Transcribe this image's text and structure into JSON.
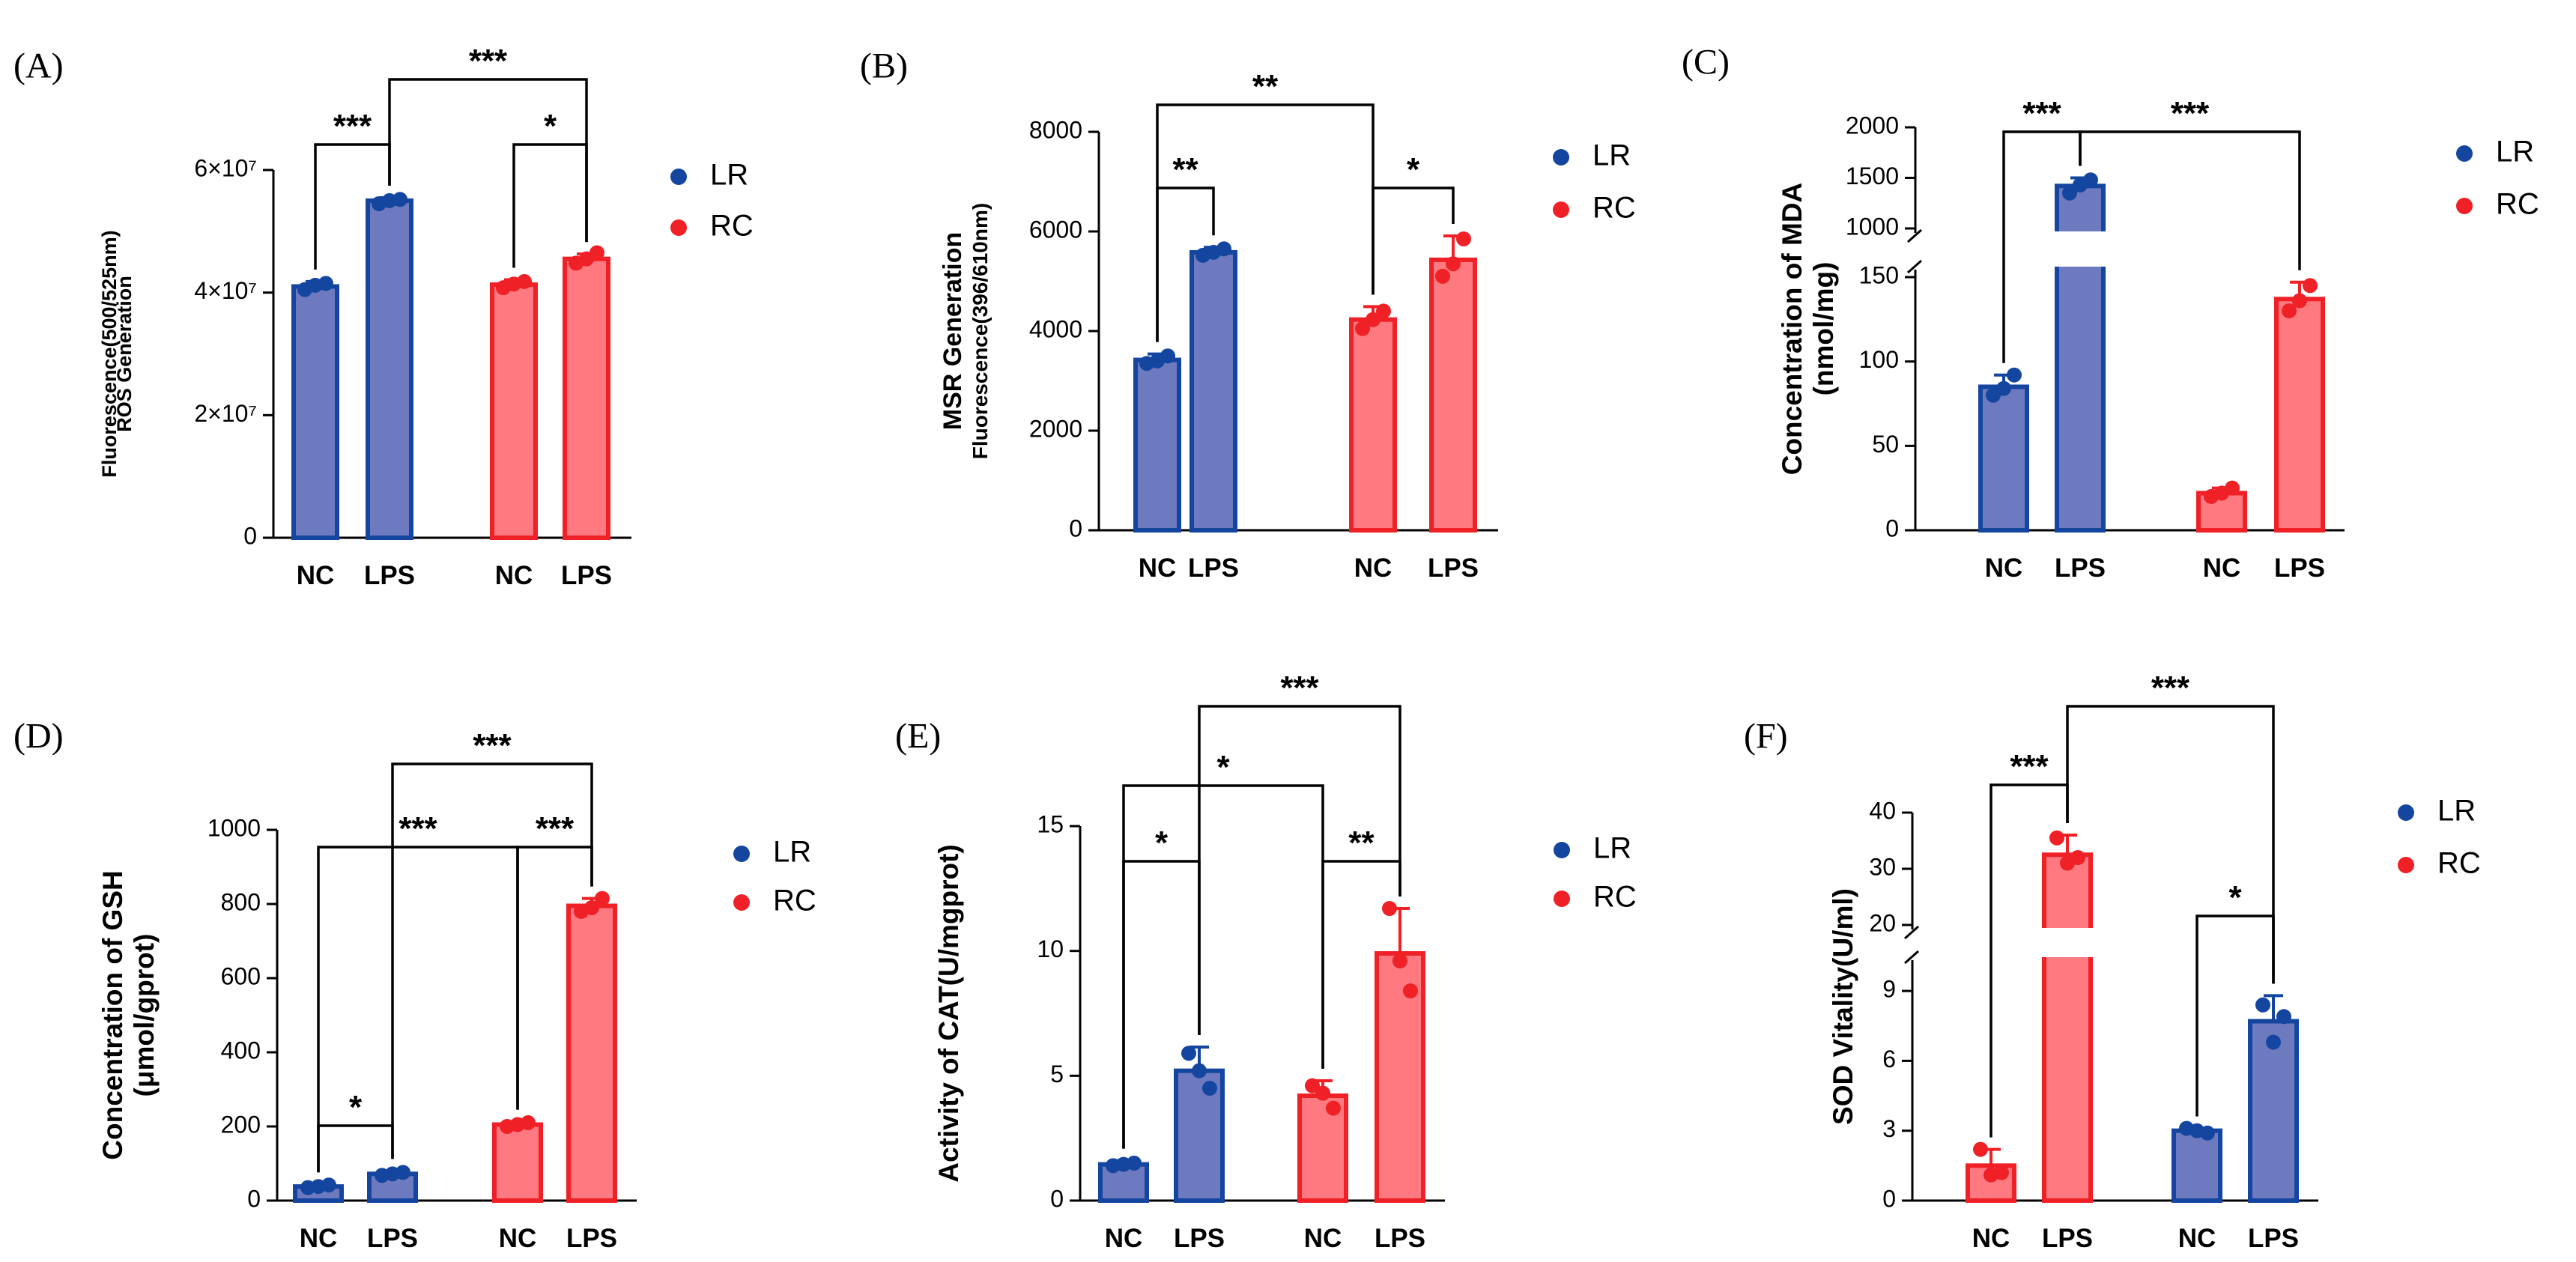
{
  "colors": {
    "LR_fill": "#6e7abf",
    "LR_edge": "#1446a0",
    "LR_dot": "#1446a0",
    "RC_fill": "#ff7a80",
    "RC_edge": "#ef2026",
    "RC_dot": "#ef2026"
  },
  "chart_data": [
    {
      "type": "bar",
      "panel_label": "(A)",
      "categories": [
        "NC",
        "LPS",
        "NC",
        "LPS"
      ],
      "groups": [
        "LR",
        "LR",
        "RC",
        "RC"
      ],
      "values": [
        41000000,
        55000000,
        41300000,
        45500000
      ],
      "errors": [
        800000,
        500000,
        800000,
        800000
      ],
      "points": [
        [
          40500000,
          41500000,
          41200000
        ],
        [
          54500000,
          55200000,
          55000000
        ],
        [
          40800000,
          41800000,
          41400000
        ],
        [
          44800000,
          46500000,
          45500000
        ]
      ],
      "ylabel_lines": [
        "ROS Generation",
        "Fluorescence(500/525nm)"
      ],
      "ylim": [
        0,
        60000000
      ],
      "yticks": [
        0,
        20000000,
        40000000,
        60000000
      ],
      "ytick_labels": [
        "0",
        "2×10⁷",
        "4×10⁷",
        "6×10⁷"
      ],
      "legend": [
        "LR",
        "RC"
      ],
      "significance": [
        {
          "from": 0,
          "to": 1,
          "label": "***"
        },
        {
          "from": 2,
          "to": 3,
          "label": "*"
        },
        {
          "from": 1,
          "to": 3,
          "label": "***"
        }
      ]
    },
    {
      "type": "bar",
      "panel_label": "(B)",
      "categories": [
        "NC",
        "LPS",
        "NC",
        "LPS"
      ],
      "groups": [
        "LR",
        "LR",
        "RC",
        "RC"
      ],
      "values": [
        3420,
        5580,
        4230,
        5430
      ],
      "errors": [
        120,
        100,
        260,
        480
      ],
      "points": [
        [
          3350,
          3500,
          3400
        ],
        [
          5520,
          5650,
          5580
        ],
        [
          4050,
          4400,
          4230
        ],
        [
          5100,
          5850,
          5350
        ]
      ],
      "ylabel_lines": [
        "MSR Generation",
        "Fluorescence(396/610nm)"
      ],
      "ylim": [
        0,
        8000
      ],
      "yticks": [
        0,
        2000,
        4000,
        6000,
        8000
      ],
      "ytick_labels": [
        "0",
        "2000",
        "4000",
        "6000",
        "8000"
      ],
      "legend": [
        "LR",
        "RC"
      ],
      "significance": [
        {
          "from": 0,
          "to": 1,
          "label": "**"
        },
        {
          "from": 2,
          "to": 3,
          "label": "*"
        },
        {
          "from": 0,
          "to": 2,
          "label": "**"
        }
      ]
    },
    {
      "type": "bar",
      "panel_label": "(C)",
      "categories": [
        "NC",
        "LPS",
        "NC",
        "LPS"
      ],
      "groups": [
        "LR",
        "LR",
        "RC",
        "RC"
      ],
      "values": [
        85,
        1420,
        22,
        137
      ],
      "errors": [
        7,
        80,
        3,
        10
      ],
      "points": [
        [
          80,
          92,
          84
        ],
        [
          1350,
          1480,
          1430
        ],
        [
          20,
          25,
          22
        ],
        [
          130,
          145,
          136
        ]
      ],
      "ylabel_lines": [
        "Concentration of MDA",
        "(nmol/mg)"
      ],
      "axis_break": {
        "lower": [
          0,
          150
        ],
        "upper": [
          1000,
          2000
        ]
      },
      "ytick_labels": [
        "0",
        "50",
        "100",
        "150",
        "1000",
        "1500",
        "2000"
      ],
      "legend": [
        "LR",
        "RC"
      ],
      "significance": [
        {
          "from": 0,
          "to": 1,
          "label": "***"
        },
        {
          "from": 1,
          "to": 3,
          "label": "***"
        }
      ]
    },
    {
      "type": "bar",
      "panel_label": "(D)",
      "categories": [
        "NC",
        "LPS",
        "NC",
        "LPS"
      ],
      "groups": [
        "LR",
        "LR",
        "RC",
        "RC"
      ],
      "values": [
        38,
        72,
        205,
        795
      ],
      "errors": [
        6,
        8,
        8,
        20
      ],
      "points": [
        [
          35,
          42,
          38
        ],
        [
          68,
          76,
          72
        ],
        [
          200,
          210,
          205
        ],
        [
          780,
          815,
          790
        ]
      ],
      "ylabel_lines": [
        "Concentration of GSH",
        "(μmol/gprot)"
      ],
      "ylim": [
        0,
        1000
      ],
      "yticks": [
        0,
        200,
        400,
        600,
        800,
        1000
      ],
      "ytick_labels": [
        "0",
        "200",
        "400",
        "600",
        "800",
        "1000"
      ],
      "legend": [
        "LR",
        "RC"
      ],
      "significance": [
        {
          "from": 0,
          "to": 1,
          "label": "*"
        },
        {
          "from": 2,
          "to": 3,
          "label": "***"
        },
        {
          "from": 0,
          "to": 2,
          "label": "***"
        },
        {
          "from": 1,
          "to": 3,
          "label": "***"
        }
      ]
    },
    {
      "type": "bar",
      "panel_label": "(E)",
      "categories": [
        "NC",
        "LPS",
        "NC",
        "LPS"
      ],
      "groups": [
        "LR",
        "LR",
        "RC",
        "RC"
      ],
      "values": [
        1.45,
        5.2,
        4.2,
        9.9
      ],
      "errors": [
        0.15,
        0.95,
        0.6,
        1.8
      ],
      "points": [
        [
          1.4,
          1.5,
          1.45
        ],
        [
          5.9,
          4.5,
          5.2
        ],
        [
          4.6,
          3.7,
          4.3
        ],
        [
          11.7,
          8.4,
          9.6
        ]
      ],
      "ylabel_lines": [
        "Activity of CAT(U/mgprot)"
      ],
      "ylim": [
        0,
        15
      ],
      "yticks": [
        0,
        5,
        10,
        15
      ],
      "ytick_labels": [
        "0",
        "5",
        "10",
        "15"
      ],
      "legend": [
        "LR",
        "RC"
      ],
      "significance": [
        {
          "from": 0,
          "to": 1,
          "label": "*"
        },
        {
          "from": 2,
          "to": 3,
          "label": "**"
        },
        {
          "from": 0,
          "to": 2,
          "label": "*"
        },
        {
          "from": 1,
          "to": 3,
          "label": "***"
        }
      ]
    },
    {
      "type": "bar",
      "panel_label": "(F)",
      "categories": [
        "NC",
        "LPS",
        "NC",
        "LPS"
      ],
      "groups": [
        "RC",
        "RC",
        "LR",
        "LR"
      ],
      "values": [
        1.5,
        32.5,
        3.0,
        7.7
      ],
      "errors": [
        0.7,
        3.5,
        0.1,
        1.1
      ],
      "points": [
        [
          2.2,
          1.2,
          1.1
        ],
        [
          35.5,
          32.0,
          31.0
        ],
        [
          3.1,
          2.9,
          3.0
        ],
        [
          8.4,
          7.9,
          6.8
        ]
      ],
      "ylabel_lines": [
        "SOD Vitality(U/ml)"
      ],
      "axis_break": {
        "lower": [
          0,
          10
        ],
        "upper": [
          20,
          40
        ]
      },
      "ytick_labels": [
        "0",
        "3",
        "6",
        "9",
        "20",
        "30",
        "40"
      ],
      "legend": [
        "LR",
        "RC"
      ],
      "significance": [
        {
          "from": 0,
          "to": 1,
          "label": "***"
        },
        {
          "from": 2,
          "to": 3,
          "label": "*"
        },
        {
          "from": 1,
          "to": 3,
          "label": "***"
        }
      ]
    }
  ]
}
